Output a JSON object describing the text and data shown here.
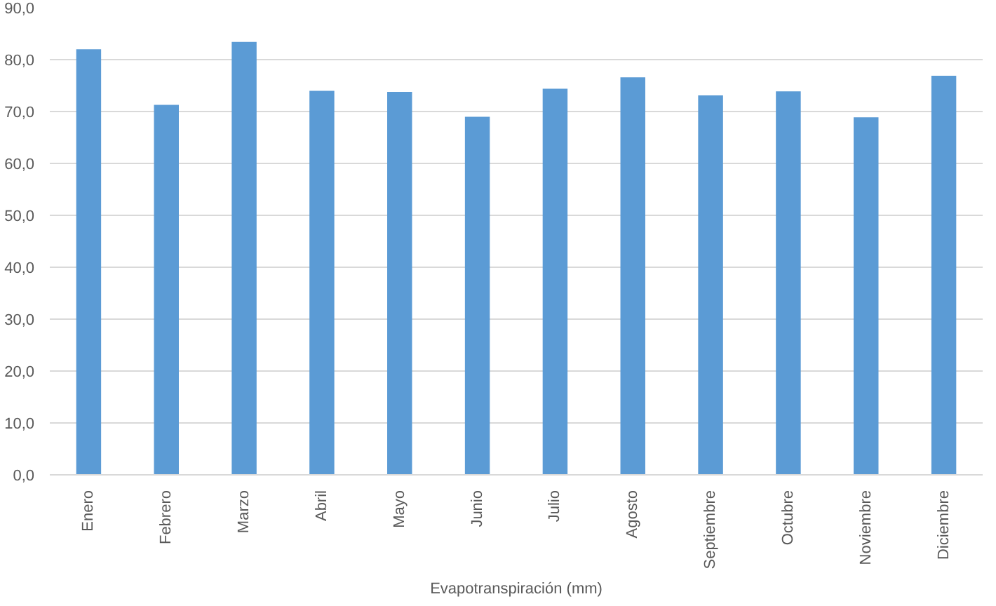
{
  "chart_data": {
    "type": "bar",
    "xlabel": "Evapotranspiración (mm)",
    "categories": [
      "Enero",
      "Febrero",
      "Marzo",
      "Abril",
      "Mayo",
      "Junio",
      "Julio",
      "Agosto",
      "Septiembre",
      "Octubre",
      "Noviembre",
      "Diciembre"
    ],
    "values": [
      82.0,
      71.3,
      83.4,
      74.0,
      73.8,
      69.0,
      74.4,
      76.6,
      73.1,
      73.9,
      68.9,
      76.9
    ],
    "color": "#5b9bd5",
    "ylim": [
      0,
      90
    ],
    "yticks": [
      {
        "value": 0,
        "label": "0,0"
      },
      {
        "value": 10,
        "label": "10,0"
      },
      {
        "value": 20,
        "label": "20,0"
      },
      {
        "value": 30,
        "label": "30,0"
      },
      {
        "value": 40,
        "label": "40,0"
      },
      {
        "value": 50,
        "label": "50,0"
      },
      {
        "value": 60,
        "label": "60,0"
      },
      {
        "value": 70,
        "label": "70,0"
      },
      {
        "value": 80,
        "label": "80,0"
      },
      {
        "value": 90,
        "label": "90,0"
      }
    ],
    "grid": "y"
  }
}
